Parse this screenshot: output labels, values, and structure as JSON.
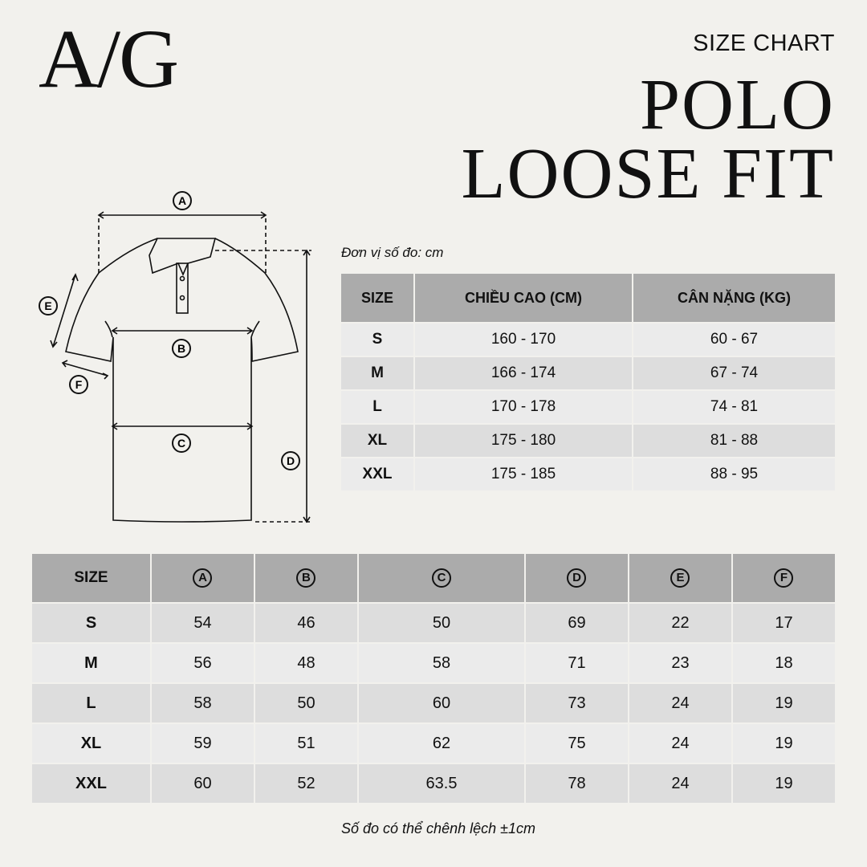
{
  "brand": "A/G",
  "kicker": "SIZE CHART",
  "title_line1": "POLO",
  "title_line2": "LOOSE FIT",
  "unit_note": "Đơn vị số đo: cm",
  "diagram_labels": [
    "A",
    "B",
    "C",
    "D",
    "E",
    "F"
  ],
  "body_table": {
    "headers": [
      "SIZE",
      "CHIỀU CAO (CM)",
      "CÂN NẶNG (KG)"
    ],
    "rows": [
      [
        "S",
        "160 - 170",
        "60 - 67"
      ],
      [
        "M",
        "166 - 174",
        "67 - 74"
      ],
      [
        "L",
        "170 - 178",
        "74 - 81"
      ],
      [
        "XL",
        "175 - 180",
        "81 - 88"
      ],
      [
        "XXL",
        "175 - 185",
        "88 - 95"
      ]
    ]
  },
  "measure_table": {
    "headers": [
      "SIZE",
      "A",
      "B",
      "C",
      "D",
      "E",
      "F"
    ],
    "rows": [
      [
        "S",
        "54",
        "46",
        "50",
        "69",
        "22",
        "17"
      ],
      [
        "M",
        "56",
        "48",
        "58",
        "71",
        "23",
        "18"
      ],
      [
        "L",
        "58",
        "50",
        "60",
        "73",
        "24",
        "19"
      ],
      [
        "XL",
        "59",
        "51",
        "62",
        "75",
        "24",
        "19"
      ],
      [
        "XXL",
        "60",
        "52",
        "63.5",
        "78",
        "24",
        "19"
      ]
    ]
  },
  "footer_note": "Số đo có thể chênh lệch ±1cm",
  "colors": {
    "background": "#f2f1ed",
    "header": "#ababab",
    "row_dark": "#dddddd",
    "row_light": "#ebebeb"
  }
}
